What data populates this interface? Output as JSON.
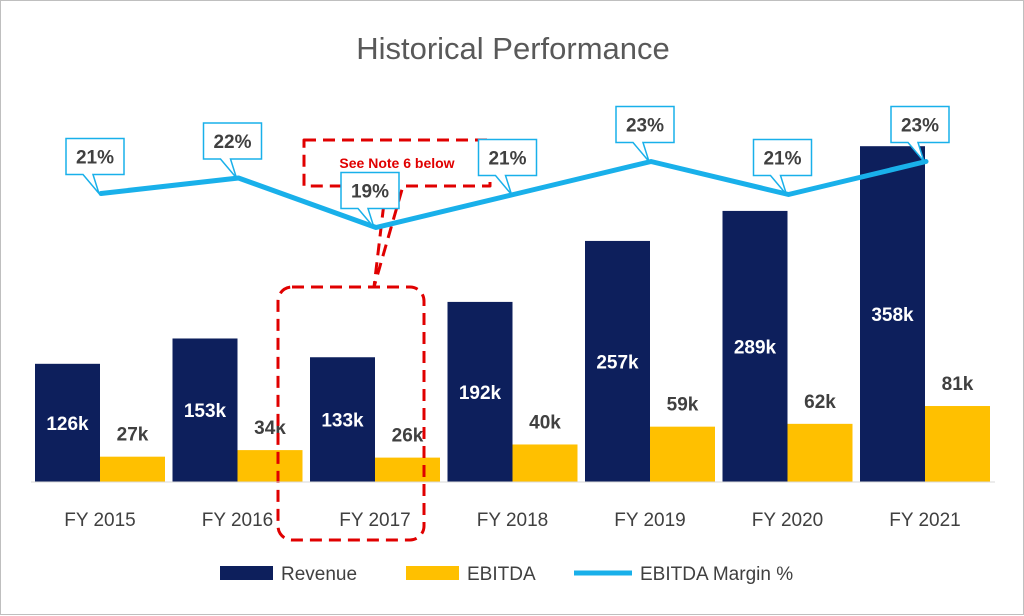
{
  "chart_data": {
    "type": "bar",
    "title": "Historical Performance",
    "categories": [
      "FY 2015",
      "FY 2016",
      "FY 2017",
      "FY 2018",
      "FY 2019",
      "FY 2020",
      "FY 2021"
    ],
    "series": [
      {
        "name": "Revenue",
        "kind": "bar",
        "color": "#0d1f5c",
        "values": [
          126,
          153,
          133,
          192,
          257,
          289,
          358
        ],
        "labels": [
          "126k",
          "153k",
          "133k",
          "192k",
          "257k",
          "289k",
          "358k"
        ]
      },
      {
        "name": "EBITDA",
        "kind": "bar",
        "color": "#ffc000",
        "values": [
          27,
          34,
          26,
          40,
          59,
          62,
          81
        ],
        "labels": [
          "27k",
          "34k",
          "26k",
          "40k",
          "59k",
          "62k",
          "81k"
        ]
      },
      {
        "name": "EBITDA Margin %",
        "kind": "line",
        "color": "#19b0ea",
        "values": [
          21,
          22,
          19,
          21,
          23,
          21,
          23
        ],
        "labels": [
          "21%",
          "22%",
          "19%",
          "21%",
          "23%",
          "21%",
          "23%"
        ]
      }
    ],
    "legend_position": "bottom",
    "grid": false,
    "annotation": {
      "text": "See Note 6 below",
      "category": "FY 2017",
      "color": "#e00000"
    }
  }
}
